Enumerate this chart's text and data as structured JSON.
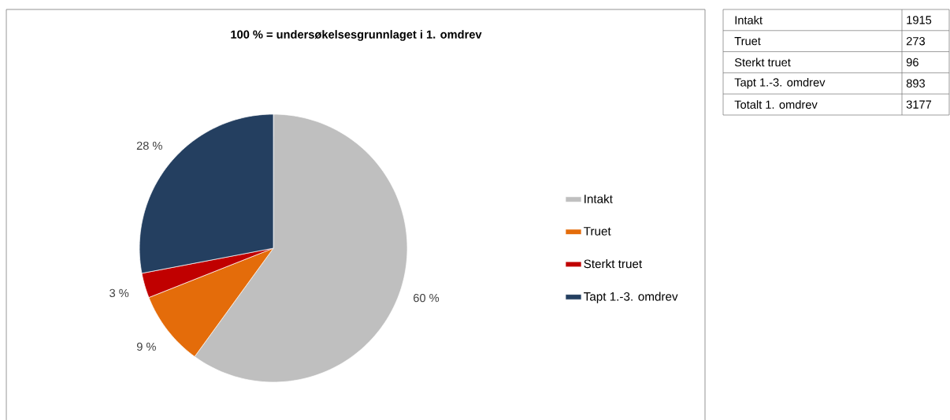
{
  "chart_data": [
    {
      "type": "pie",
      "title": "100 % = undersøkelsesgrunnlaget i 1. omdrev",
      "categories": [
        "Intakt",
        "Truet",
        "Sterkt truet",
        "Tapt 1.-3. omdrev"
      ],
      "values": [
        60,
        9,
        3,
        28
      ],
      "colors": [
        "#bfbfbf",
        "#e46c0a",
        "#c00000",
        "#243f60"
      ],
      "value_labels": [
        "60 %",
        "9 %",
        "3 %",
        "28 %"
      ],
      "legend": "right"
    },
    {
      "type": "other",
      "annotations": [
        "Intakt",
        "1915",
        "Truet",
        "273",
        "Sterkt truet",
        "96",
        "Tapt 1.-3. omdrev",
        "893",
        "Totalt 1. omdrev",
        "3177"
      ]
    }
  ]
}
